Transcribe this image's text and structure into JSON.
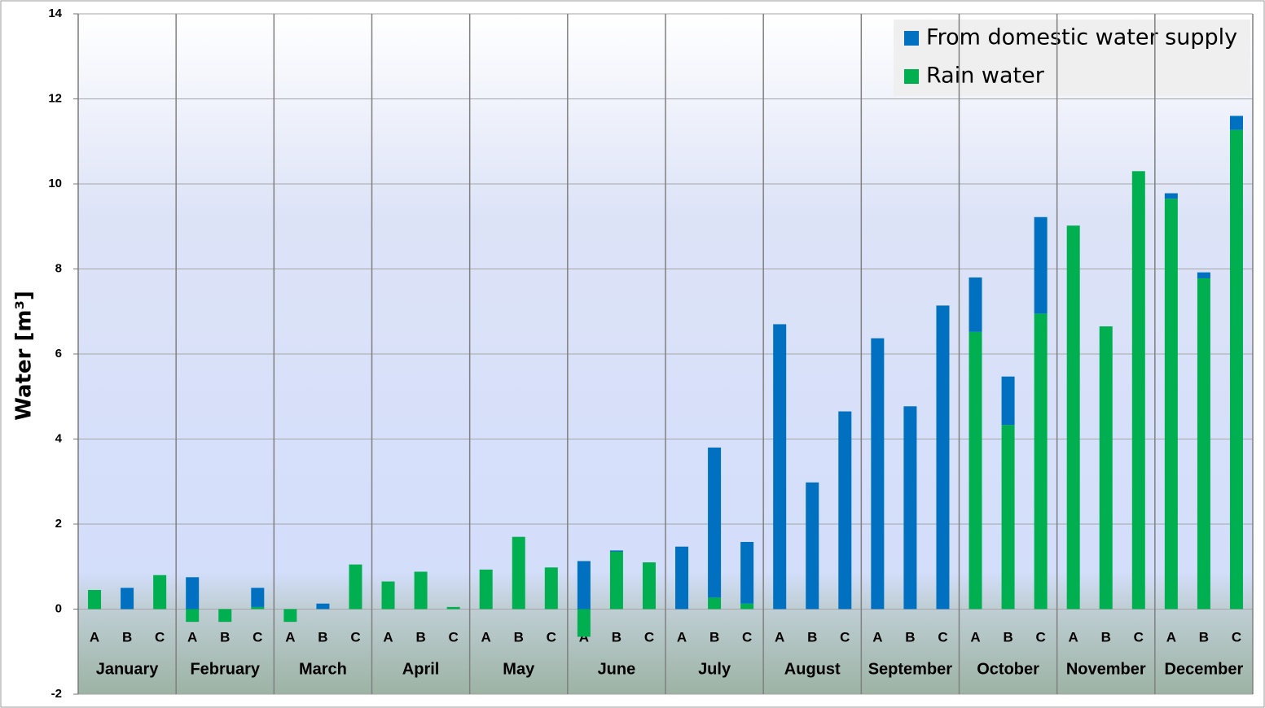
{
  "chart_data": {
    "type": "stacked-bar",
    "y_label": "Water [m³]",
    "groups": [
      "January",
      "February",
      "March",
      "April",
      "May",
      "June",
      "July",
      "August",
      "September",
      "October",
      "November",
      "December"
    ],
    "categories": [
      "A",
      "B",
      "C",
      "A",
      "B",
      "C",
      "A",
      "B",
      "C",
      "A",
      "B",
      "C",
      "A",
      "B",
      "C",
      "A",
      "B",
      "C",
      "A",
      "B",
      "C",
      "A",
      "B",
      "C",
      "A",
      "B",
      "C",
      "A",
      "B",
      "C",
      "A",
      "B",
      "C",
      "A",
      "B",
      "C"
    ],
    "series": [
      {
        "name": "Rain water",
        "color": "#00b050",
        "values": [
          0.45,
          0,
          0.8,
          -0.3,
          -0.3,
          0.05,
          -0.3,
          0,
          1.05,
          0.65,
          0.88,
          0.05,
          0.93,
          1.7,
          0.98,
          -0.65,
          1.35,
          1.1,
          0,
          0.27,
          0.13,
          0,
          0,
          0,
          0,
          0,
          0,
          6.52,
          4.33,
          6.95,
          9.02,
          6.65,
          10.3,
          9.65,
          7.78,
          11.27
        ]
      },
      {
        "name": "From domestic water supply",
        "color": "#0070c0",
        "values": [
          0,
          0.5,
          0,
          0.75,
          0,
          0.45,
          0,
          0.13,
          0,
          0,
          0,
          0,
          0,
          0,
          0,
          1.13,
          0.03,
          0,
          1.47,
          3.53,
          1.45,
          6.7,
          2.98,
          4.65,
          6.37,
          4.77,
          7.14,
          1.28,
          1.14,
          2.27,
          0,
          0,
          0,
          0.13,
          0.14,
          0.33
        ]
      }
    ],
    "legend_order": [
      1,
      0
    ],
    "legend_position": "upper right",
    "ylim": [
      -2,
      14
    ],
    "yticks": [
      -2,
      0,
      2,
      4,
      6,
      8,
      10,
      12,
      14
    ],
    "grid": true
  }
}
